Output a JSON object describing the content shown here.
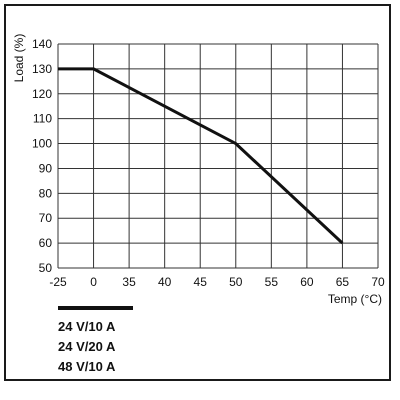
{
  "chart_data": {
    "type": "line",
    "title": "",
    "xlabel": "Temp (°C)",
    "ylabel": "Load (%)",
    "x_ticks": [
      "-25",
      "0",
      "35",
      "40",
      "45",
      "50",
      "55",
      "60",
      "65",
      "70"
    ],
    "y_ticks": [
      "50",
      "60",
      "70",
      "80",
      "90",
      "100",
      "110",
      "120",
      "130",
      "140"
    ],
    "ylim": [
      50,
      140
    ],
    "grid": true,
    "series": [
      {
        "name": "",
        "color": "#111111",
        "points": [
          {
            "x": -25,
            "y": 130
          },
          {
            "x": 0,
            "y": 130
          },
          {
            "x": 50,
            "y": 100
          },
          {
            "x": 65,
            "y": 60
          }
        ]
      }
    ],
    "legend": {
      "placement": "bottom-left",
      "entries": [
        "24 V/10 A",
        "24 V/20 A",
        "48 V/10 A"
      ]
    }
  }
}
